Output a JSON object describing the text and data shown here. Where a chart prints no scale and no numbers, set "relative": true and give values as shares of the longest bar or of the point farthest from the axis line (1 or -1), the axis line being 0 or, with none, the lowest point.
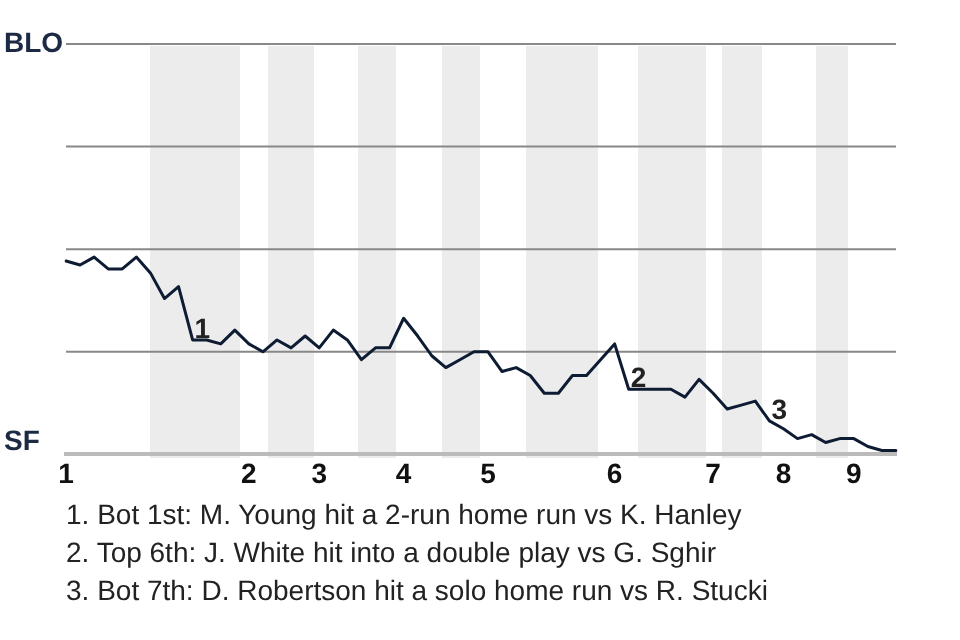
{
  "chart_data": {
    "type": "line",
    "relative": true,
    "categories": [
      "1",
      null,
      null,
      null,
      null,
      null,
      null,
      null,
      null,
      null,
      null,
      null,
      null,
      "2",
      null,
      null,
      null,
      null,
      "3",
      null,
      null,
      null,
      null,
      null,
      "4",
      null,
      null,
      null,
      null,
      null,
      "5",
      null,
      null,
      null,
      null,
      null,
      null,
      null,
      null,
      "6",
      null,
      null,
      null,
      null,
      null,
      null,
      "7",
      null,
      null,
      null,
      null,
      "8",
      null,
      null,
      null,
      null,
      "9",
      null,
      null,
      null
    ],
    "values": [
      0.98,
      0.96,
      1,
      0.94,
      0.94,
      1,
      0.92,
      0.79,
      0.85,
      0.58,
      0.58,
      0.56,
      0.63,
      0.56,
      0.52,
      0.58,
      0.54,
      0.6,
      0.54,
      0.63,
      0.58,
      0.48,
      0.54,
      0.54,
      0.69,
      0.6,
      0.5,
      0.44,
      0.48,
      0.52,
      0.52,
      0.42,
      0.44,
      0.4,
      0.31,
      0.31,
      0.4,
      0.4,
      0.48,
      0.56,
      0.33,
      0.33,
      0.33,
      0.33,
      0.29,
      0.38,
      0.31,
      0.23,
      0.25,
      0.27,
      0.17,
      0.13,
      0.08,
      0.1,
      0.06,
      0.08,
      0.08,
      0.04,
      0.02,
      0.02
    ],
    "color": "#0d1b33",
    "marker": "none",
    "line_style": "solid",
    "ref_lines": [
      {
        "axis": "y",
        "value": 0.52,
        "color": "#888888"
      },
      {
        "axis": "y",
        "value": 1.04,
        "color": "#888888"
      },
      {
        "axis": "y",
        "value": 1.56,
        "color": "#888888"
      },
      {
        "axis": "y",
        "value": 2.08,
        "color": "#888888"
      }
    ],
    "annotations": [
      "BLO",
      "SF",
      {
        "text": "1",
        "y": 0.58
      },
      {
        "text": "2",
        "y": 0.33
      },
      {
        "text": "3",
        "y": 0.17
      },
      "1. Bot 1st: M. Young hit a 2-run home run vs K. Hanley",
      "2. Top 6th: J. White hit into a double play vs G. Sghir",
      "3. Bot 7th: D. Robertson hit a solo home run vs R. Stucki"
    ]
  }
}
